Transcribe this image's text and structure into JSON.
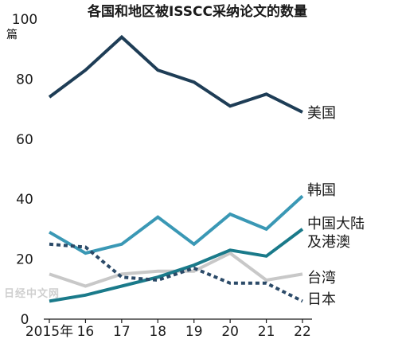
{
  "chart_data": {
    "type": "line",
    "title": "各国和地区被ISSCC采纳论文的数量",
    "y_unit": "篇",
    "x": [
      "2015年",
      "16",
      "17",
      "18",
      "19",
      "20",
      "21",
      "22"
    ],
    "ylim": [
      0,
      100
    ],
    "y_ticks": [
      "0",
      "20",
      "40",
      "60",
      "80",
      "100"
    ],
    "grid": false,
    "series": [
      {
        "name": "美国",
        "values": [
          74,
          83,
          94,
          83,
          79,
          71,
          75,
          69
        ],
        "color": "#1e3d56",
        "style": "solid"
      },
      {
        "name": "韩国",
        "values": [
          29,
          22,
          25,
          34,
          25,
          35,
          30,
          41
        ],
        "color": "#3a98b5",
        "style": "solid"
      },
      {
        "name": "中国大陆及港澳",
        "label_lines": [
          "中国大陆",
          "及港澳"
        ],
        "values": [
          6,
          8,
          11,
          14,
          18,
          23,
          21,
          30
        ],
        "color": "#1a7a8a",
        "style": "solid"
      },
      {
        "name": "台湾",
        "values": [
          15,
          11,
          15,
          16,
          16,
          22,
          13,
          15
        ],
        "color": "#c8c8c8",
        "style": "solid"
      },
      {
        "name": "日本",
        "values": [
          25,
          24,
          14,
          13,
          17,
          12,
          12,
          6
        ],
        "color": "#2b4a68",
        "style": "dotted"
      }
    ]
  },
  "watermark": "日经中文网"
}
